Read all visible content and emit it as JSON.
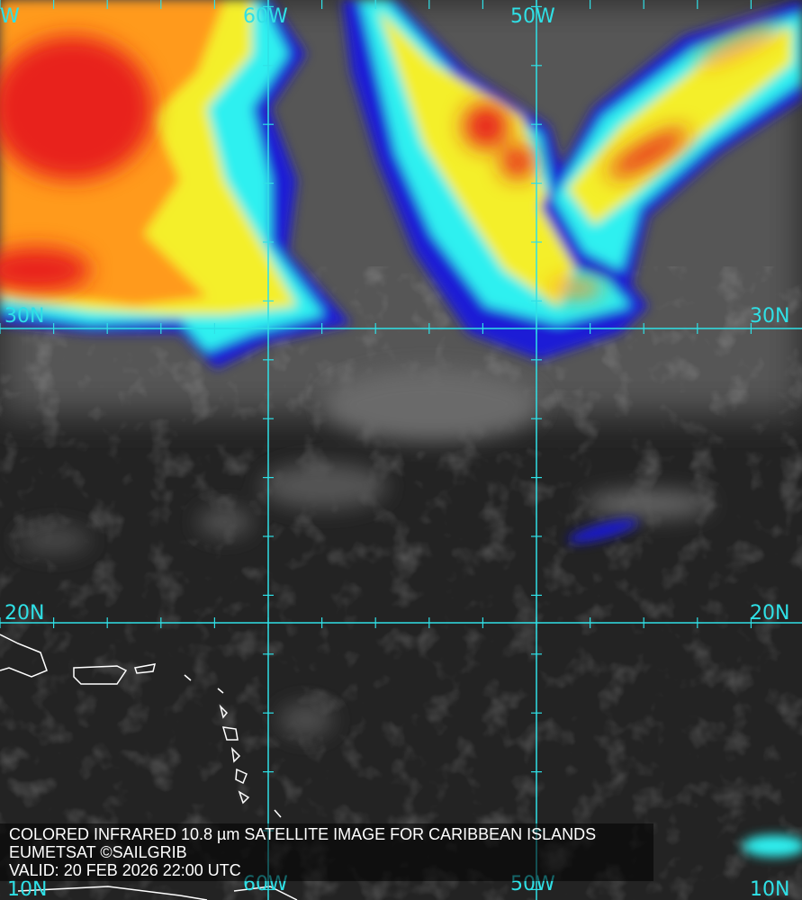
{
  "map": {
    "title": "COLORED INFRARED 10.8 µm SATELLITE IMAGE FOR CARIBBEAN ISLANDS",
    "credit": "EUMETSAT ©SAILGRIB",
    "valid": "VALID:  20 FEB 2026 22:00 UTC",
    "region": "Caribbean Islands",
    "longitude_labels": {
      "w70_partial": "W",
      "w60": "60W",
      "w50": "50W"
    },
    "latitude_labels": {
      "n30": "30N",
      "n20": "20N",
      "n10": "10N"
    },
    "colors": {
      "grid": "#2fe0e6",
      "coast": "#ffffff",
      "cloud_coldest": "#e8231e",
      "cloud_cold": "#ff9a1a",
      "cloud_mid": "#f4ef2a",
      "cloud_warm": "#2ef0f0",
      "cloud_edge": "#1a1ad6",
      "background": "#232323"
    }
  }
}
